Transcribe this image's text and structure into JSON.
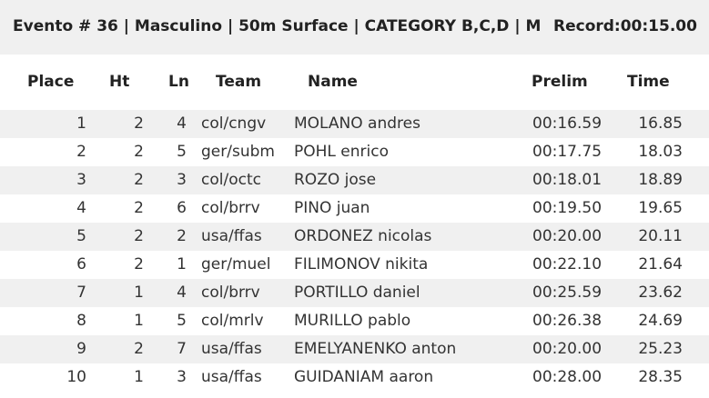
{
  "header": {
    "title": "Evento # 36 | Masculino | 50m Surface | CATEGORY B,C,D | M",
    "record": "Record:00:15.00"
  },
  "table": {
    "columns": [
      "Place",
      "Ht",
      "Ln",
      "Team",
      "Name",
      "Prelim",
      "Time"
    ],
    "rows": [
      [
        "1",
        "2",
        "4",
        "col/cngv",
        "MOLANO andres",
        "00:16.59",
        "16.85"
      ],
      [
        "2",
        "2",
        "5",
        "ger/subm",
        "POHL enrico",
        "00:17.75",
        "18.03"
      ],
      [
        "3",
        "2",
        "3",
        "col/octc",
        "ROZO jose",
        "00:18.01",
        "18.89"
      ],
      [
        "4",
        "2",
        "6",
        "col/brrv",
        "PINO juan",
        "00:19.50",
        "19.65"
      ],
      [
        "5",
        "2",
        "2",
        "usa/ffas",
        "ORDONEZ nicolas",
        "00:20.00",
        "20.11"
      ],
      [
        "6",
        "2",
        "1",
        "ger/muel",
        "FILIMONOV nikita",
        "00:22.10",
        "21.64"
      ],
      [
        "7",
        "1",
        "4",
        "col/brrv",
        "PORTILLO daniel",
        "00:25.59",
        "23.62"
      ],
      [
        "8",
        "1",
        "5",
        "col/mrlv",
        "MURILLO pablo",
        "00:26.38",
        "24.69"
      ],
      [
        "9",
        "2",
        "7",
        "usa/ffas",
        "EMELYANENKO anton",
        "00:20.00",
        "25.23"
      ],
      [
        "10",
        "1",
        "3",
        "usa/ffas",
        "GUIDANIAM aaron",
        "00:28.00",
        "28.35"
      ]
    ]
  }
}
